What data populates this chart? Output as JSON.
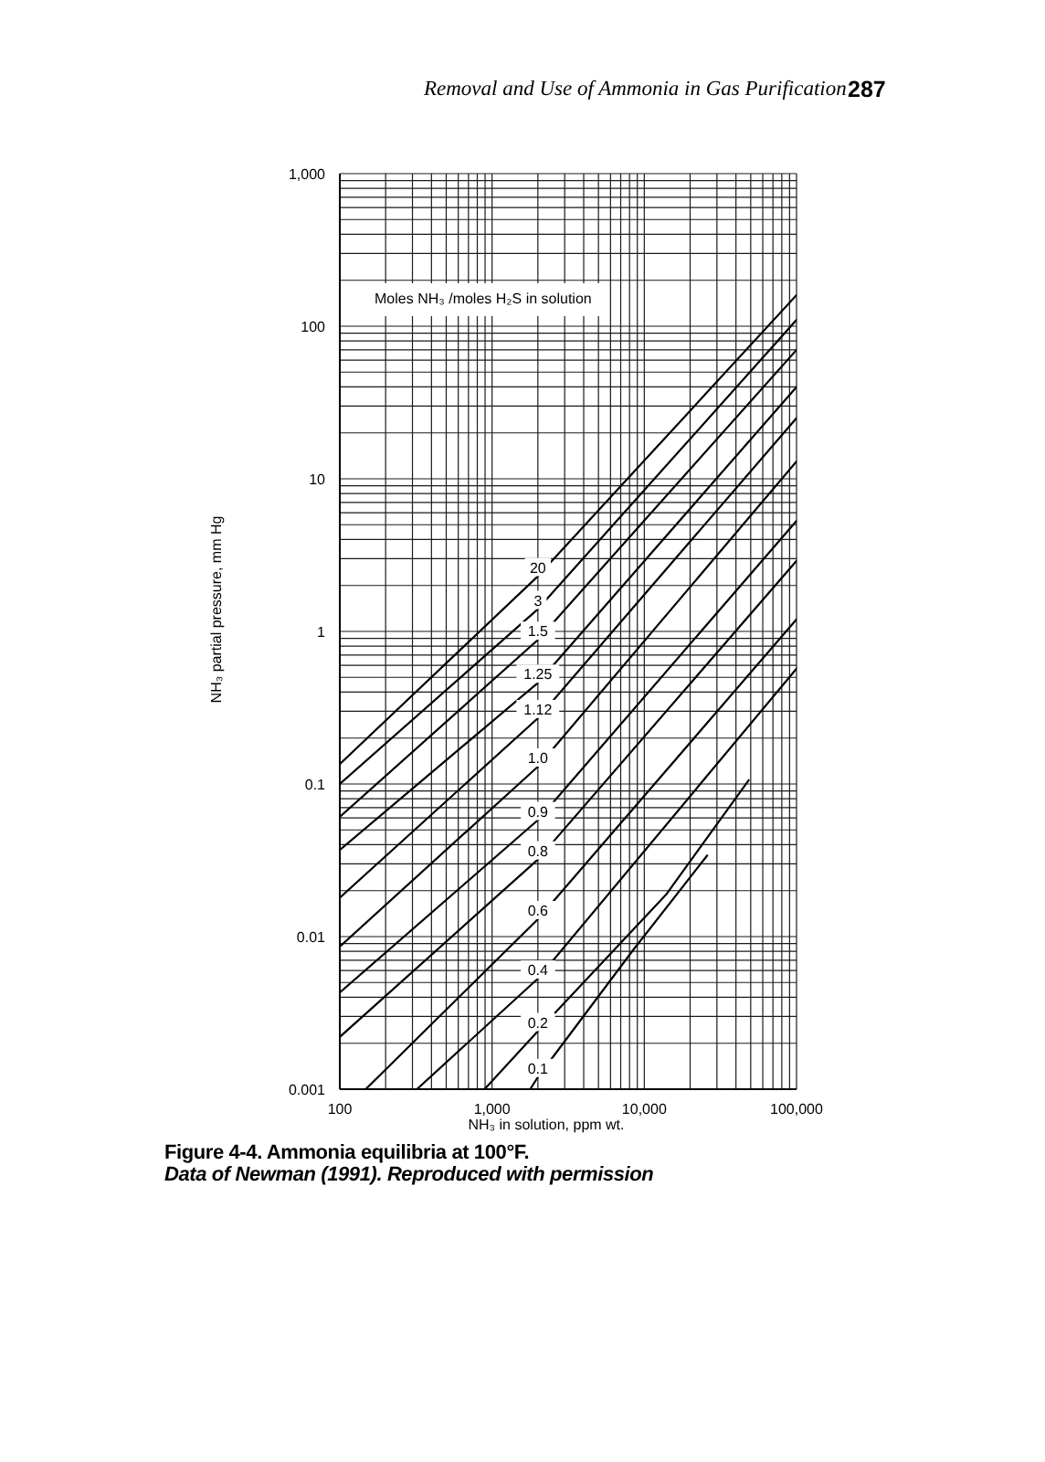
{
  "chart_data": {
    "type": "line",
    "log": "xy",
    "xlabel": "NH₃ in solution, ppm wt.",
    "ylabel": "NH₃ partial pressure, mm Hg",
    "legend_title": "Moles NH₃ /moles H₂S in solution",
    "annotations": [
      "Removal and Use of Ammonia in Gas Purification",
      "287",
      "Figure 4-4. Ammonia equilibria at 100°F.",
      "Data of Newman (1991). Reproduced with permission"
    ],
    "xlim": [
      100,
      100000
    ],
    "ylim": [
      0.001,
      1000
    ],
    "grid": true,
    "xticks": [
      100,
      {
        "value": 200,
        "label": null
      },
      {
        "value": 300,
        "label": null
      },
      {
        "value": 400,
        "label": null
      },
      {
        "value": 500,
        "label": null
      },
      {
        "value": 600,
        "label": null
      },
      {
        "value": 700,
        "label": null
      },
      {
        "value": 800,
        "label": null
      },
      {
        "value": 900,
        "label": null
      },
      {
        "value": 1000,
        "label": "1,000"
      },
      {
        "value": 2000,
        "label": null
      },
      {
        "value": 3000,
        "label": null
      },
      {
        "value": 4000,
        "label": null
      },
      {
        "value": 5000,
        "label": null
      },
      {
        "value": 6000,
        "label": null
      },
      {
        "value": 7000,
        "label": null
      },
      {
        "value": 8000,
        "label": null
      },
      {
        "value": 9000,
        "label": null
      },
      {
        "value": 10000,
        "label": "10,000"
      },
      {
        "value": 20000,
        "label": null
      },
      {
        "value": 30000,
        "label": null
      },
      {
        "value": 40000,
        "label": null
      },
      {
        "value": 50000,
        "label": null
      },
      {
        "value": 60000,
        "label": null
      },
      {
        "value": 70000,
        "label": null
      },
      {
        "value": 80000,
        "label": null
      },
      {
        "value": 90000,
        "label": null
      },
      {
        "value": 100000,
        "label": "100,000"
      }
    ],
    "yticks": [
      0.001,
      {
        "value": 0.002,
        "label": null
      },
      {
        "value": 0.003,
        "label": null
      },
      {
        "value": 0.004,
        "label": null
      },
      {
        "value": 0.005,
        "label": null
      },
      {
        "value": 0.006,
        "label": null
      },
      {
        "value": 0.007,
        "label": null
      },
      {
        "value": 0.008,
        "label": null
      },
      {
        "value": 0.009,
        "label": null
      },
      0.01,
      {
        "value": 0.02,
        "label": null
      },
      {
        "value": 0.03,
        "label": null
      },
      {
        "value": 0.04,
        "label": null
      },
      {
        "value": 0.05,
        "label": null
      },
      {
        "value": 0.06,
        "label": null
      },
      {
        "value": 0.07,
        "label": null
      },
      {
        "value": 0.08,
        "label": null
      },
      {
        "value": 0.09,
        "label": null
      },
      0.1,
      {
        "value": 0.2,
        "label": null
      },
      {
        "value": 0.3,
        "label": null
      },
      {
        "value": 0.4,
        "label": null
      },
      {
        "value": 0.5,
        "label": null
      },
      {
        "value": 0.6,
        "label": null
      },
      {
        "value": 0.7,
        "label": null
      },
      {
        "value": 0.8,
        "label": null
      },
      {
        "value": 0.9,
        "label": null
      },
      1,
      {
        "value": 2,
        "label": null
      },
      {
        "value": 3,
        "label": null
      },
      {
        "value": 4,
        "label": null
      },
      {
        "value": 5,
        "label": null
      },
      {
        "value": 6,
        "label": null
      },
      {
        "value": 7,
        "label": null
      },
      {
        "value": 8,
        "label": null
      },
      {
        "value": 9,
        "label": null
      },
      10,
      {
        "value": 20,
        "label": null
      },
      {
        "value": 30,
        "label": null
      },
      {
        "value": 40,
        "label": null
      },
      {
        "value": 50,
        "label": null
      },
      {
        "value": 60,
        "label": null
      },
      {
        "value": 70,
        "label": null
      },
      {
        "value": 80,
        "label": null
      },
      {
        "value": 90,
        "label": null
      },
      100,
      {
        "value": 200,
        "label": null
      },
      {
        "value": 300,
        "label": null
      },
      {
        "value": 400,
        "label": null
      },
      {
        "value": 500,
        "label": null
      },
      {
        "value": 600,
        "label": null
      },
      {
        "value": 700,
        "label": null
      },
      {
        "value": 800,
        "label": null
      },
      {
        "value": 900,
        "label": null
      },
      {
        "value": 1000,
        "label": "1,000"
      }
    ],
    "series": [
      {
        "name": "20",
        "color": "#000000",
        "x": [
          100,
          2000,
          100000
        ],
        "values": [
          0.135,
          2.3,
          160
        ]
      },
      {
        "name": "3",
        "color": "#000000",
        "x": [
          100,
          2000,
          100000
        ],
        "values": [
          0.1,
          1.4,
          110
        ]
      },
      {
        "name": "1.5",
        "color": "#000000",
        "x": [
          100,
          2000,
          100000
        ],
        "values": [
          0.061,
          0.88,
          70
        ]
      },
      {
        "name": "1.25",
        "color": "#000000",
        "x": [
          100,
          2000,
          100000
        ],
        "values": [
          0.037,
          0.46,
          40
        ]
      },
      {
        "name": "1.12",
        "color": "#000000",
        "x": [
          100,
          2000,
          100000
        ],
        "values": [
          0.018,
          0.27,
          25
        ]
      },
      {
        "name": "1.0",
        "color": "#000000",
        "x": [
          100,
          2000,
          100000
        ],
        "values": [
          0.0086,
          0.13,
          13
        ]
      },
      {
        "name": "0.9",
        "color": "#000000",
        "x": [
          100,
          2000,
          100000
        ],
        "values": [
          0.0043,
          0.058,
          5.3
        ]
      },
      {
        "name": "0.8",
        "color": "#000000",
        "x": [
          100,
          2000,
          100000
        ],
        "values": [
          0.0022,
          0.032,
          2.9
        ]
      },
      {
        "name": "0.6",
        "color": "#000000",
        "x": [
          148,
          2000,
          100000
        ],
        "values": [
          0.001,
          0.013,
          1.2
        ]
      },
      {
        "name": "0.4",
        "color": "#000000",
        "x": [
          321,
          2000,
          100000
        ],
        "values": [
          0.001,
          0.0053,
          0.57
        ]
      },
      {
        "name": "0.2",
        "color": "#000000",
        "x": [
          893,
          2000,
          14000,
          48500
        ],
        "values": [
          0.001,
          0.0024,
          0.019,
          0.106
        ]
      },
      {
        "name": "0.1",
        "color": "#000000",
        "x": [
          1780,
          2000,
          8400,
          25900
        ],
        "values": [
          0.001,
          0.0012,
          0.0081,
          0.034
        ]
      }
    ]
  }
}
